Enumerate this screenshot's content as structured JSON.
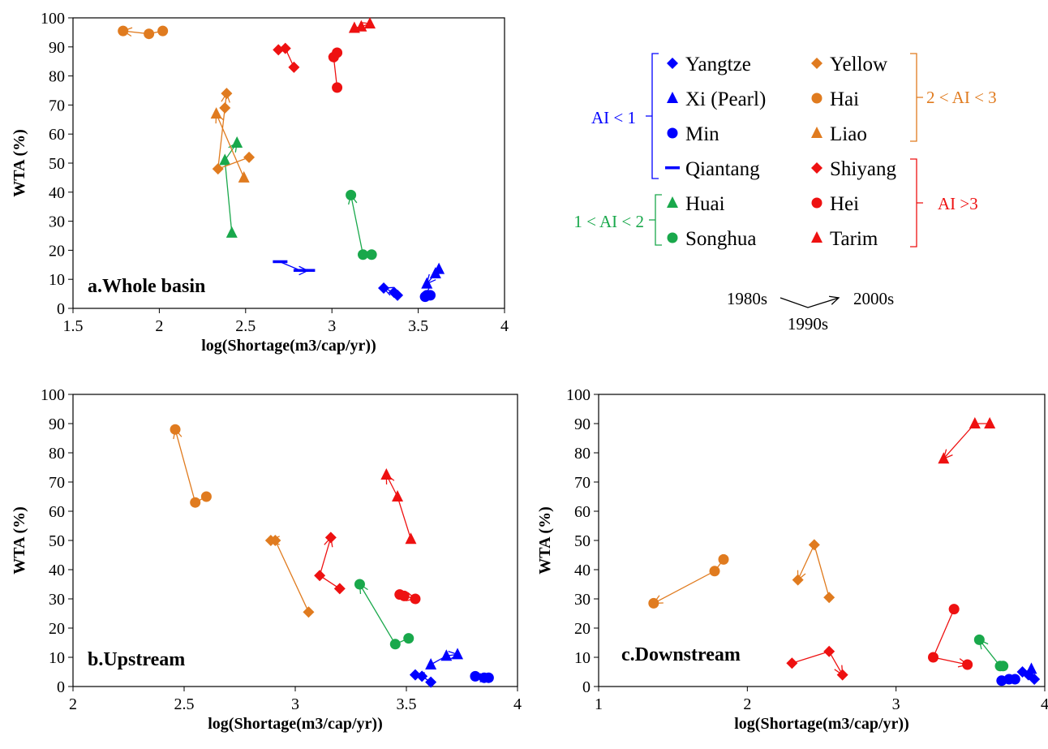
{
  "colors": {
    "blue": "#0000ff",
    "orange": "#e07b1f",
    "green": "#19a84b",
    "red": "#ee1111",
    "black": "#000000"
  },
  "legend": {
    "groups": [
      {
        "label": "AI < 1",
        "color": "#0000ff"
      },
      {
        "label": "2 < AI < 3",
        "color": "#e07b1f"
      },
      {
        "label": "1 < AI < 2",
        "color": "#19a84b"
      },
      {
        "label": "AI >3",
        "color": "#ee1111"
      }
    ],
    "entries": [
      {
        "name": "Yangtze",
        "marker": "diamond",
        "color": "#0000ff"
      },
      {
        "name": "Xi (Pearl)",
        "marker": "triangle",
        "color": "#0000ff"
      },
      {
        "name": "Min",
        "marker": "circle",
        "color": "#0000ff"
      },
      {
        "name": "Qiantang",
        "marker": "dash",
        "color": "#0000ff"
      },
      {
        "name": "Huai",
        "marker": "triangle",
        "color": "#19a84b"
      },
      {
        "name": "Songhua",
        "marker": "circle",
        "color": "#19a84b"
      },
      {
        "name": "Yellow",
        "marker": "diamond",
        "color": "#e07b1f"
      },
      {
        "name": "Hai",
        "marker": "circle",
        "color": "#e07b1f"
      },
      {
        "name": "Liao",
        "marker": "triangle",
        "color": "#e07b1f"
      },
      {
        "name": "Shiyang",
        "marker": "diamond",
        "color": "#ee1111"
      },
      {
        "name": "Hei",
        "marker": "circle",
        "color": "#ee1111"
      },
      {
        "name": "Tarim",
        "marker": "triangle",
        "color": "#ee1111"
      }
    ],
    "time_key": {
      "start": "1980s",
      "middle": "1990s",
      "end": "2000s"
    }
  },
  "chart_data": [
    {
      "type": "scatter",
      "panel_label": "a.Whole basin",
      "xlabel": "log(Shortage(m3/cap/yr))",
      "ylabel": "WTA (%)",
      "xlim": [
        1.5,
        4
      ],
      "ylim": [
        0,
        100
      ],
      "xticks": [
        "1.5",
        "2",
        "2.5",
        "3",
        "3.5",
        "4"
      ],
      "yticks": [
        "0",
        "10",
        "20",
        "30",
        "40",
        "50",
        "60",
        "70",
        "80",
        "90",
        "100"
      ],
      "series": [
        {
          "name": "Yangtze",
          "marker": "diamond",
          "color": "#0000ff",
          "points": [
            [
              3.38,
              4.5
            ],
            [
              3.36,
              5.5
            ],
            [
              3.3,
              7
            ]
          ]
        },
        {
          "name": "Xi (Pearl)",
          "marker": "triangle",
          "color": "#0000ff",
          "points": [
            [
              3.62,
              13.5
            ],
            [
              3.6,
              12
            ],
            [
              3.55,
              8.5
            ]
          ]
        },
        {
          "name": "Min",
          "marker": "circle",
          "color": "#0000ff",
          "points": [
            [
              3.57,
              4.5
            ],
            [
              3.55,
              4.5
            ],
            [
              3.54,
              4
            ]
          ]
        },
        {
          "name": "Qiantang",
          "marker": "dash",
          "color": "#0000ff",
          "points": [
            [
              2.7,
              16
            ],
            [
              2.82,
              13
            ],
            [
              2.86,
              13
            ]
          ]
        },
        {
          "name": "Huai",
          "marker": "triangle",
          "color": "#19a84b",
          "points": [
            [
              2.42,
              26
            ],
            [
              2.38,
              51
            ],
            [
              2.45,
              57
            ]
          ]
        },
        {
          "name": "Songhua",
          "marker": "circle",
          "color": "#19a84b",
          "points": [
            [
              3.23,
              18.5
            ],
            [
              3.18,
              18.5
            ],
            [
              3.11,
              39
            ]
          ]
        },
        {
          "name": "Yellow",
          "marker": "diamond",
          "color": "#e07b1f",
          "points": [
            [
              2.52,
              52
            ],
            [
              2.34,
              48
            ],
            [
              2.38,
              69
            ],
            [
              2.39,
              74
            ]
          ]
        },
        {
          "name": "Hai",
          "marker": "circle",
          "color": "#e07b1f",
          "points": [
            [
              2.02,
              95.5
            ],
            [
              1.94,
              94.5
            ],
            [
              1.79,
              95.5
            ]
          ]
        },
        {
          "name": "Liao",
          "marker": "triangle",
          "color": "#e07b1f",
          "points": [
            [
              2.49,
              45
            ],
            [
              2.33,
              67
            ]
          ]
        },
        {
          "name": "Shiyang",
          "marker": "diamond",
          "color": "#ee1111",
          "points": [
            [
              2.78,
              83
            ],
            [
              2.73,
              89.5
            ],
            [
              2.69,
              89
            ]
          ]
        },
        {
          "name": "Hei",
          "marker": "circle",
          "color": "#ee1111",
          "points": [
            [
              3.03,
              76
            ],
            [
              3.01,
              86.5
            ],
            [
              3.03,
              88
            ]
          ]
        },
        {
          "name": "Tarim",
          "marker": "triangle",
          "color": "#ee1111",
          "points": [
            [
              3.13,
              96.5
            ],
            [
              3.17,
              97
            ],
            [
              3.22,
              98
            ]
          ]
        }
      ]
    },
    {
      "type": "scatter",
      "panel_label": "b.Upstream",
      "xlabel": "log(Shortage(m3/cap/yr))",
      "ylabel": "WTA (%)",
      "xlim": [
        2,
        4
      ],
      "ylim": [
        0,
        100
      ],
      "xticks": [
        "2",
        "2.5",
        "3",
        "3.5",
        "4"
      ],
      "yticks": [
        "0",
        "10",
        "20",
        "30",
        "40",
        "50",
        "60",
        "70",
        "80",
        "90",
        "100"
      ],
      "series": [
        {
          "name": "Yangtze",
          "marker": "diamond",
          "color": "#0000ff",
          "points": [
            [
              3.61,
              1.5
            ],
            [
              3.57,
              3.5
            ],
            [
              3.54,
              4
            ]
          ]
        },
        {
          "name": "Xi (Pearl)",
          "marker": "triangle",
          "color": "#0000ff",
          "points": [
            [
              3.61,
              7.5
            ],
            [
              3.68,
              10.5
            ],
            [
              3.73,
              11
            ]
          ]
        },
        {
          "name": "Min",
          "marker": "circle",
          "color": "#0000ff",
          "points": [
            [
              3.81,
              3.5
            ],
            [
              3.85,
              3
            ],
            [
              3.87,
              3
            ]
          ]
        },
        {
          "name": "Songhua",
          "marker": "circle",
          "color": "#19a84b",
          "points": [
            [
              3.51,
              16.5
            ],
            [
              3.45,
              14.5
            ],
            [
              3.29,
              35
            ]
          ]
        },
        {
          "name": "Yellow",
          "marker": "diamond",
          "color": "#e07b1f",
          "points": [
            [
              3.06,
              25.5
            ],
            [
              2.91,
              50
            ],
            [
              2.89,
              50
            ]
          ]
        },
        {
          "name": "Hai",
          "marker": "circle",
          "color": "#e07b1f",
          "points": [
            [
              2.6,
              65
            ],
            [
              2.55,
              63
            ],
            [
              2.46,
              88
            ]
          ]
        },
        {
          "name": "Shiyang",
          "marker": "diamond",
          "color": "#ee1111",
          "points": [
            [
              3.2,
              33.5
            ],
            [
              3.11,
              38
            ],
            [
              3.16,
              51
            ]
          ]
        },
        {
          "name": "Hei",
          "marker": "circle",
          "color": "#ee1111",
          "points": [
            [
              3.47,
              31.5
            ],
            [
              3.49,
              31
            ],
            [
              3.54,
              30
            ]
          ]
        },
        {
          "name": "Tarim",
          "marker": "triangle",
          "color": "#ee1111",
          "points": [
            [
              3.52,
              50.5
            ],
            [
              3.46,
              65
            ],
            [
              3.41,
              72.5
            ]
          ]
        }
      ]
    },
    {
      "type": "scatter",
      "panel_label": "c.Downstream",
      "xlabel": "log(Shortage(m3/cap/yr))",
      "ylabel": "WTA (%)",
      "xlim": [
        1,
        4
      ],
      "ylim": [
        0,
        100
      ],
      "xticks": [
        "1",
        "2",
        "3",
        "4"
      ],
      "yticks": [
        "0",
        "10",
        "20",
        "30",
        "40",
        "50",
        "60",
        "70",
        "80",
        "90",
        "100"
      ],
      "series": [
        {
          "name": "Yangtze",
          "marker": "diamond",
          "color": "#0000ff",
          "points": [
            [
              3.93,
              2.5
            ],
            [
              3.89,
              4
            ],
            [
              3.85,
              5
            ]
          ]
        },
        {
          "name": "Xi (Pearl)",
          "marker": "triangle",
          "color": "#0000ff",
          "points": [
            [
              3.91,
              6
            ]
          ]
        },
        {
          "name": "Min",
          "marker": "circle",
          "color": "#0000ff",
          "points": [
            [
              3.71,
              2
            ],
            [
              3.76,
              2.5
            ],
            [
              3.8,
              2.5
            ]
          ]
        },
        {
          "name": "Songhua",
          "marker": "circle",
          "color": "#19a84b",
          "points": [
            [
              3.72,
              7
            ],
            [
              3.7,
              7
            ],
            [
              3.56,
              16
            ]
          ]
        },
        {
          "name": "Yellow",
          "marker": "diamond",
          "color": "#e07b1f",
          "points": [
            [
              2.55,
              30.5
            ],
            [
              2.45,
              48.5
            ],
            [
              2.34,
              36.5
            ]
          ]
        },
        {
          "name": "Hai",
          "marker": "circle",
          "color": "#e07b1f",
          "points": [
            [
              1.84,
              43.5
            ],
            [
              1.78,
              39.5
            ],
            [
              1.37,
              28.5
            ]
          ]
        },
        {
          "name": "Shiyang",
          "marker": "diamond",
          "color": "#ee1111",
          "points": [
            [
              2.3,
              8
            ],
            [
              2.55,
              12
            ],
            [
              2.64,
              4
            ]
          ]
        },
        {
          "name": "Hei",
          "marker": "circle",
          "color": "#ee1111",
          "points": [
            [
              3.39,
              26.5
            ],
            [
              3.25,
              10
            ],
            [
              3.48,
              7.5
            ]
          ]
        },
        {
          "name": "Tarim",
          "marker": "triangle",
          "color": "#ee1111",
          "points": [
            [
              3.63,
              90
            ],
            [
              3.53,
              90
            ],
            [
              3.32,
              78
            ]
          ]
        }
      ]
    }
  ]
}
